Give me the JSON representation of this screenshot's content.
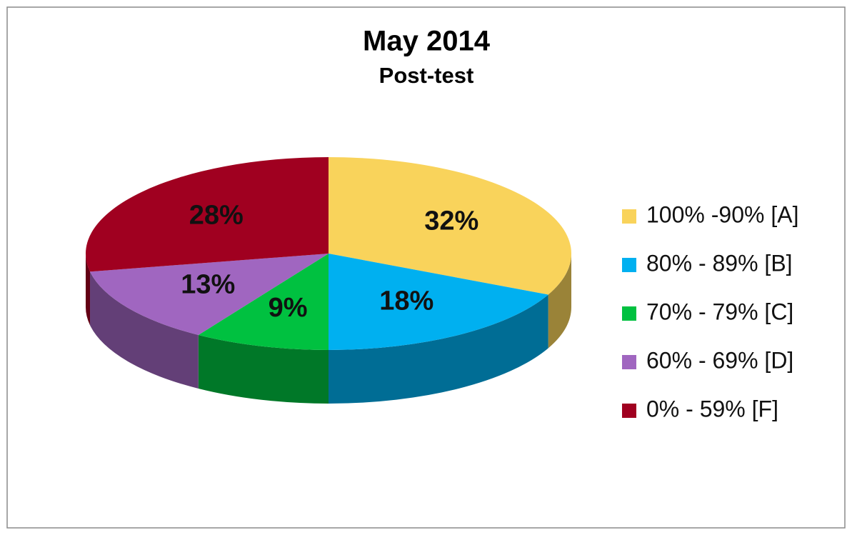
{
  "chart_data": {
    "type": "pie",
    "title": "May 2014",
    "subtitle": "Post-test",
    "categories": [
      "100% -90% [A]",
      "80% - 89% [B]",
      "70% - 79% [C]",
      "60% - 69% [D]",
      "0% - 59% [F]"
    ],
    "values": [
      32,
      18,
      9,
      13,
      28
    ],
    "value_labels": [
      "32%",
      "18%",
      "9%",
      "13%",
      "28%"
    ],
    "colors": [
      "#F9D35B",
      "#00B0F0",
      "#00C140",
      "#A066C0",
      "#A00020"
    ],
    "legend": "right"
  }
}
